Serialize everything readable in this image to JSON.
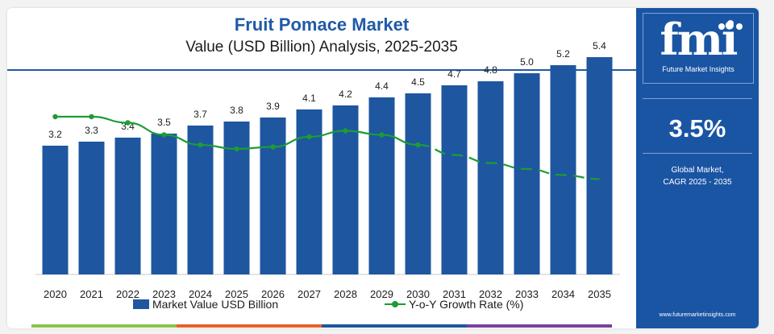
{
  "header": {
    "title": "Fruit Pomace Market",
    "subtitle": "Value (USD Billion) Analysis, 2025-2035"
  },
  "legend": {
    "bars": "Market Value USD Billion",
    "line": "Y-o-Y Growth Rate (%)"
  },
  "sidebar": {
    "logo": "fmi",
    "brand": "Future Market Insights",
    "cagr_value": "3.5%",
    "cagr_label_line1": "Global Market,",
    "cagr_label_line2": "CAGR 2025 - 2035",
    "url": "www.futuremarketinsights.com"
  },
  "colors": {
    "bar": "#1e56a0",
    "line": "#1c9c34",
    "title": "#1f5aa6",
    "sidebar": "#1a55a3",
    "strip": [
      "#8bc34a",
      "#e8612c",
      "#1e56a0",
      "#7b3fa0"
    ]
  },
  "chart_data": {
    "type": "bar",
    "categories": [
      "2020",
      "2021",
      "2022",
      "2023",
      "2024",
      "2025",
      "2026",
      "2027",
      "2028",
      "2029",
      "2030",
      "2031",
      "2032",
      "2033",
      "2034",
      "2035"
    ],
    "series": [
      {
        "name": "Market Value USD Billion",
        "type": "bar",
        "values": [
          3.2,
          3.3,
          3.4,
          3.5,
          3.7,
          3.8,
          3.9,
          4.1,
          4.2,
          4.4,
          4.5,
          4.7,
          4.8,
          5.0,
          5.2,
          5.4
        ],
        "labels": [
          "3.2",
          "3.3",
          "3.4",
          "3.5",
          "3.7",
          "3.8",
          "3.9",
          "4.1",
          "4.2",
          "4.4",
          "4.5",
          "4.7",
          "4.8",
          "5.0",
          "5.2",
          "5.4"
        ]
      },
      {
        "name": "Y-o-Y Growth Rate (%)",
        "type": "line",
        "values": [
          3.9,
          3.9,
          3.75,
          3.45,
          3.2,
          3.1,
          3.15,
          3.4,
          3.55,
          3.45,
          3.2,
          2.95,
          2.75,
          2.6,
          2.45,
          2.35
        ],
        "dashed_from": "2031"
      }
    ],
    "ylim": [
      0,
      6
    ]
  }
}
